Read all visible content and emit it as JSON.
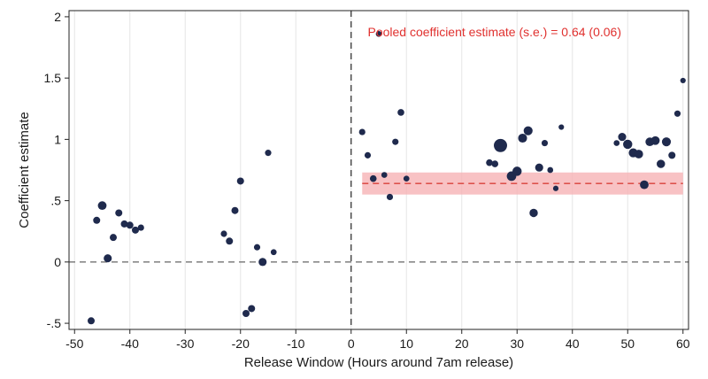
{
  "chart_data": {
    "type": "scatter",
    "title": "",
    "xlabel": "Release Window (Hours around 7am release)",
    "ylabel": "Coefficient estimate",
    "xlim": [
      -51,
      61
    ],
    "ylim": [
      -0.55,
      2.05
    ],
    "x_ticks": [
      -50,
      -40,
      -30,
      -20,
      -10,
      0,
      10,
      20,
      30,
      40,
      50,
      60
    ],
    "x_tick_labels": [
      "-50",
      "-40",
      "-30",
      "-20",
      "-10",
      "0",
      "10",
      "20",
      "30",
      "40",
      "50",
      "60"
    ],
    "y_ticks": [
      -0.5,
      0,
      0.5,
      1,
      1.5,
      2
    ],
    "y_tick_labels": [
      "-.5",
      "0",
      ".5",
      "1",
      "1.5",
      "2"
    ],
    "grid": "vertical",
    "reference_lines": {
      "vertical_x": 0,
      "horizontal_y": 0
    },
    "pooled": {
      "estimate": 0.64,
      "se": 0.06,
      "x_range": [
        2,
        60
      ],
      "band": [
        0.55,
        0.73
      ],
      "annotation": "Pooled coefficient estimate (s.e.) = 0.64 (0.06)"
    },
    "colors": {
      "points": "#1f2a4d",
      "pooled_line": "#d9403a",
      "pooled_band": "#f6b3b5",
      "reference": "#666666",
      "grid": "#e6e6e6"
    },
    "points": [
      {
        "x": -47,
        "y": -0.48,
        "w": 1.0
      },
      {
        "x": -46,
        "y": 0.34,
        "w": 1.0
      },
      {
        "x": -45,
        "y": 0.46,
        "w": 1.5
      },
      {
        "x": -44,
        "y": 0.03,
        "w": 1.3
      },
      {
        "x": -43,
        "y": 0.2,
        "w": 1.0
      },
      {
        "x": -42,
        "y": 0.4,
        "w": 1.0
      },
      {
        "x": -41,
        "y": 0.31,
        "w": 1.0
      },
      {
        "x": -40,
        "y": 0.3,
        "w": 1.0
      },
      {
        "x": -39,
        "y": 0.26,
        "w": 1.0
      },
      {
        "x": -38,
        "y": 0.28,
        "w": 0.8
      },
      {
        "x": -23,
        "y": 0.23,
        "w": 0.8
      },
      {
        "x": -22,
        "y": 0.17,
        "w": 1.0
      },
      {
        "x": -21,
        "y": 0.42,
        "w": 1.0
      },
      {
        "x": -20,
        "y": 0.66,
        "w": 1.0
      },
      {
        "x": -19,
        "y": -0.42,
        "w": 1.0
      },
      {
        "x": -18,
        "y": -0.38,
        "w": 1.0
      },
      {
        "x": -17,
        "y": 0.12,
        "w": 0.8
      },
      {
        "x": -16,
        "y": 0.0,
        "w": 1.3
      },
      {
        "x": -15,
        "y": 0.89,
        "w": 0.8
      },
      {
        "x": -14,
        "y": 0.08,
        "w": 0.7
      },
      {
        "x": 2,
        "y": 1.06,
        "w": 0.8
      },
      {
        "x": 3,
        "y": 0.87,
        "w": 0.8
      },
      {
        "x": 4,
        "y": 0.68,
        "w": 0.9
      },
      {
        "x": 5,
        "y": 1.86,
        "w": 0.7
      },
      {
        "x": 6,
        "y": 0.71,
        "w": 0.7
      },
      {
        "x": 7,
        "y": 0.53,
        "w": 0.8
      },
      {
        "x": 8,
        "y": 0.98,
        "w": 0.8
      },
      {
        "x": 9,
        "y": 1.22,
        "w": 0.9
      },
      {
        "x": 10,
        "y": 0.68,
        "w": 0.7
      },
      {
        "x": 25,
        "y": 0.81,
        "w": 0.9
      },
      {
        "x": 26,
        "y": 0.8,
        "w": 0.9
      },
      {
        "x": 27,
        "y": 0.95,
        "w": 3.5
      },
      {
        "x": 29,
        "y": 0.7,
        "w": 1.8
      },
      {
        "x": 30,
        "y": 0.74,
        "w": 1.7
      },
      {
        "x": 31,
        "y": 1.01,
        "w": 1.6
      },
      {
        "x": 32,
        "y": 1.07,
        "w": 1.6
      },
      {
        "x": 33,
        "y": 0.4,
        "w": 1.4
      },
      {
        "x": 34,
        "y": 0.77,
        "w": 1.3
      },
      {
        "x": 35,
        "y": 0.97,
        "w": 0.8
      },
      {
        "x": 36,
        "y": 0.75,
        "w": 0.7
      },
      {
        "x": 37,
        "y": 0.6,
        "w": 0.6
      },
      {
        "x": 38,
        "y": 1.1,
        "w": 0.6
      },
      {
        "x": 48,
        "y": 0.97,
        "w": 0.7
      },
      {
        "x": 49,
        "y": 1.02,
        "w": 1.3
      },
      {
        "x": 50,
        "y": 0.96,
        "w": 1.7
      },
      {
        "x": 51,
        "y": 0.89,
        "w": 1.6
      },
      {
        "x": 52,
        "y": 0.88,
        "w": 1.5
      },
      {
        "x": 53,
        "y": 0.63,
        "w": 1.5
      },
      {
        "x": 54,
        "y": 0.98,
        "w": 1.5
      },
      {
        "x": 55,
        "y": 0.99,
        "w": 1.5
      },
      {
        "x": 56,
        "y": 0.8,
        "w": 1.4
      },
      {
        "x": 57,
        "y": 0.98,
        "w": 1.6
      },
      {
        "x": 58,
        "y": 0.87,
        "w": 1.0
      },
      {
        "x": 59,
        "y": 1.21,
        "w": 0.8
      },
      {
        "x": 60,
        "y": 1.48,
        "w": 0.6
      }
    ]
  }
}
